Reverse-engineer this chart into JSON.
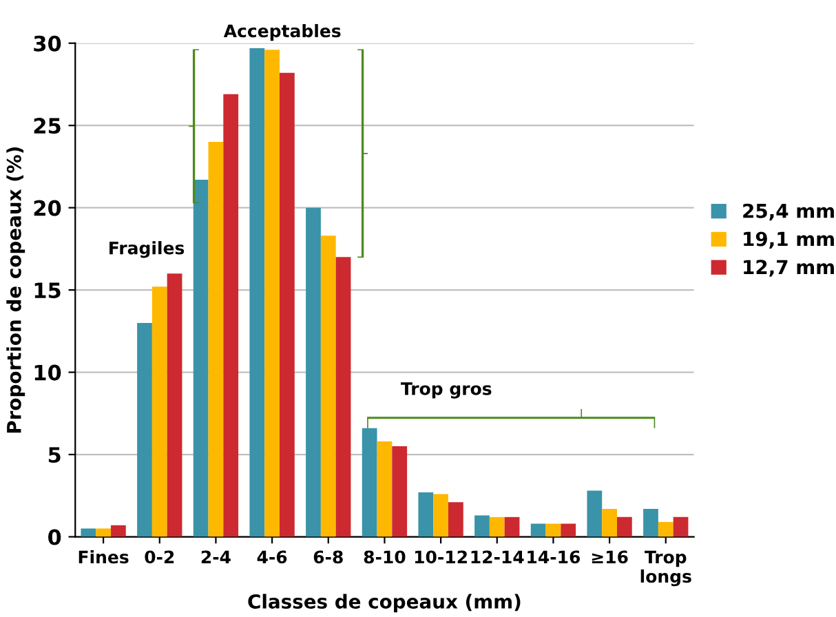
{
  "chart_data": {
    "type": "bar",
    "xlabel": "Classes de copeaux (mm)",
    "ylabel": "Proportion de copeaux (%)",
    "categories": [
      "Fines",
      "0-2",
      "2-4",
      "4-6",
      "6-8",
      "8-10",
      "10-12",
      "12-14",
      "14-16",
      "≥16",
      "Trop\nlongs"
    ],
    "series": [
      {
        "name": "25,4 mm",
        "color": "#3a93a8",
        "values": [
          0.5,
          13,
          21.7,
          29.7,
          20,
          6.6,
          2.7,
          1.3,
          0.8,
          2.8,
          1.7
        ]
      },
      {
        "name": "19,1 mm",
        "color": "#ffb800",
        "values": [
          0.5,
          15.2,
          24,
          29.6,
          18.3,
          5.8,
          2.6,
          1.2,
          0.8,
          1.7,
          0.9
        ]
      },
      {
        "name": "12,7 mm",
        "color": "#cc2a30",
        "values": [
          0.7,
          16,
          26.9,
          28.2,
          17,
          5.5,
          2.1,
          1.2,
          0.8,
          1.2,
          1.2
        ]
      }
    ],
    "ylim": [
      0,
      30
    ],
    "yticks": [
      0,
      5,
      10,
      15,
      20,
      25,
      30
    ],
    "grid": "y",
    "legend": "right",
    "annotations": [
      "Fragiles",
      "Acceptables",
      "Trop gros"
    ]
  }
}
